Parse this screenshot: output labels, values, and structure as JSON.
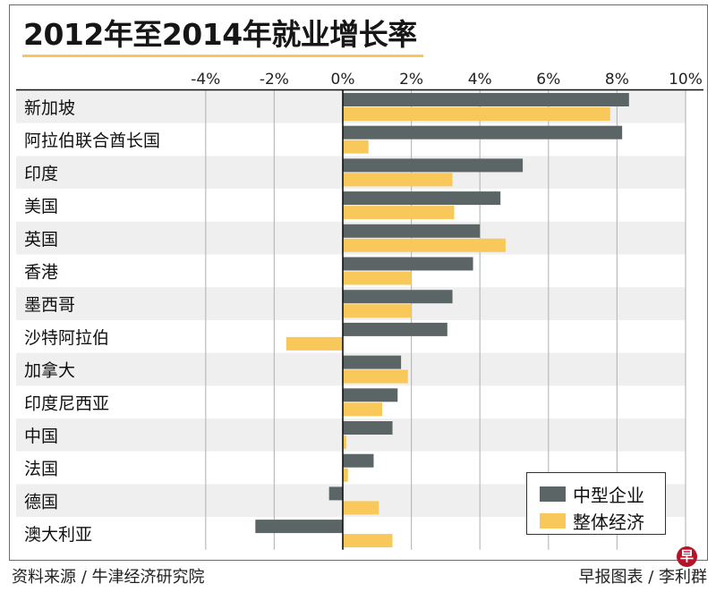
{
  "chart_data": {
    "type": "bar",
    "orientation": "horizontal",
    "title": "2012年至2014年就业增长率",
    "xlabel": "",
    "ylabel": "",
    "xlim": [
      -6,
      10
    ],
    "x_ticks": [
      -4,
      -2,
      0,
      2,
      4,
      6,
      8,
      10
    ],
    "x_tick_labels": [
      "-4%",
      "-2%",
      "0%",
      "2%",
      "4%",
      "6%",
      "8%",
      "10%"
    ],
    "grid": true,
    "legend_position": "bottom-right",
    "categories": [
      "新加坡",
      "阿拉伯联合酋长国",
      "印度",
      "美国",
      "英国",
      "香港",
      "墨西哥",
      "沙特阿拉伯",
      "加拿大",
      "印度尼西亚",
      "中国",
      "法国",
      "德国",
      "澳大利亚"
    ],
    "series": [
      {
        "name": "中型企业",
        "color": "#5b6566",
        "values": [
          8.35,
          8.15,
          5.25,
          4.6,
          4.0,
          3.8,
          3.2,
          3.05,
          1.7,
          1.6,
          1.45,
          0.9,
          -0.4,
          -2.55
        ]
      },
      {
        "name": "整体经济",
        "color": "#f8c95a",
        "values": [
          7.8,
          0.75,
          3.2,
          3.25,
          4.75,
          2.0,
          2.0,
          -1.65,
          1.9,
          1.15,
          0.1,
          0.15,
          1.05,
          1.45
        ]
      }
    ]
  },
  "header": {
    "title": "2012年至2014年就业增长率"
  },
  "legend": {
    "items": [
      {
        "label": "中型企业",
        "color": "#5b6566"
      },
      {
        "label": "整体经济",
        "color": "#f8c95a"
      }
    ]
  },
  "footer": {
    "source": "资料来源 / 牛津经济研究院",
    "credit": "早报图表 / 李利群",
    "logo_glyph": "早"
  },
  "colors": {
    "stripe": "#efefef",
    "gridline": "#b9bcbc",
    "axis": "#111111",
    "title_rule": "#f5c65a",
    "logo": "#b5132a"
  }
}
